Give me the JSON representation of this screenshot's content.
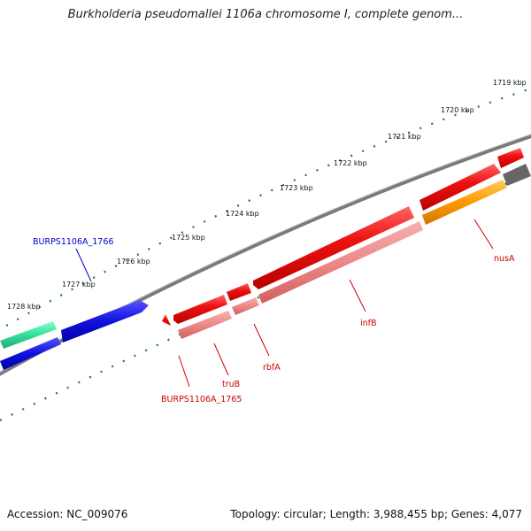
{
  "title": "Burkholderia pseudomallei 1106a chromosome I, complete genom...",
  "footer": {
    "accession": "Accession: NC_009076",
    "summary": "Topology: circular; Length: 3,988,455 bp; Genes: 4,077"
  },
  "scale_labels": [
    "1719 kbp",
    "1720 kbp",
    "1721 kbp",
    "1722 kbp",
    "1723 kbp",
    "1724 kbp",
    "1725 kbp",
    "1726 kbp",
    "1727 kbp",
    "1728 kbp"
  ],
  "gene_labels": {
    "burps1106a_1766": "BURPS1106A_1766",
    "burps1106a_1765": "BURPS1106A_1765",
    "trub": "truB",
    "rbfa": "rbfA",
    "infb": "infB",
    "nusa": "nusA"
  },
  "colors": {
    "backbone": "#808080",
    "ticks": "#1a7f1a",
    "gene_red": "#ee1111",
    "cds_pink": "#ee8888",
    "orange": "#ff9900",
    "blue": "#1111dd",
    "teal": "#33dd99",
    "gray_gene": "#666666",
    "label_red": "#cc0000",
    "label_blue": "#0000cc"
  }
}
